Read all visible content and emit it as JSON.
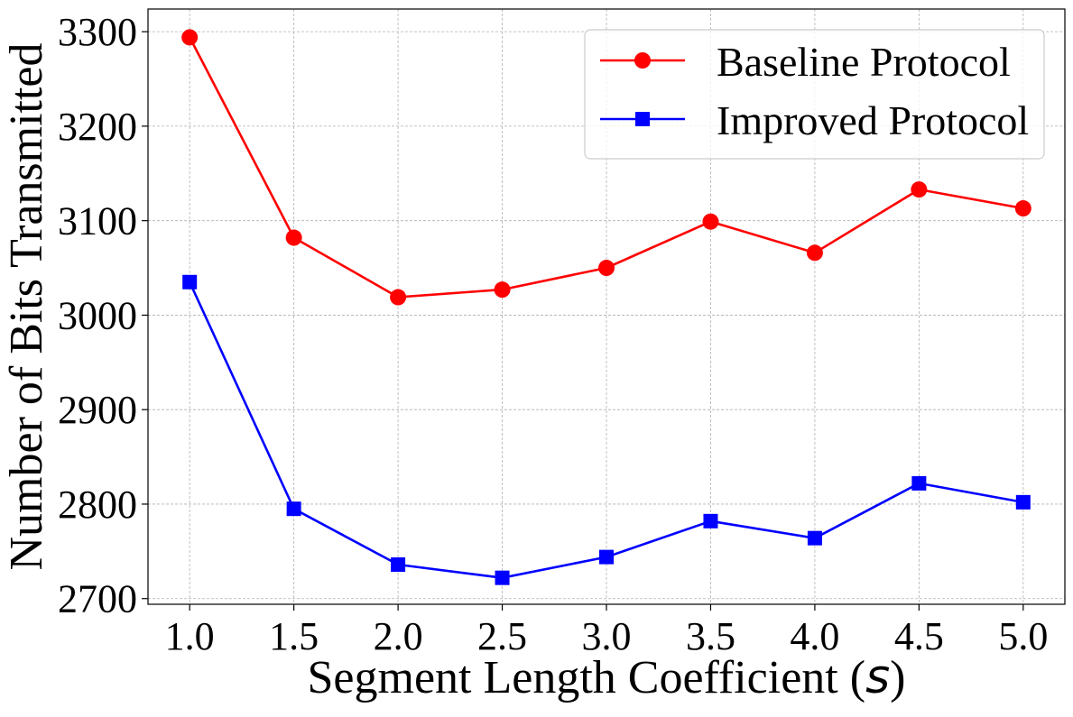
{
  "chart_data": {
    "type": "line",
    "title": "",
    "xlabel": "Segment Length Coefficient (s)",
    "ylabel": "Number of Bits Transmitted",
    "x": [
      1.0,
      1.5,
      2.0,
      2.5,
      3.0,
      3.5,
      4.0,
      4.5,
      5.0
    ],
    "x_tick_labels": [
      "1.0",
      "1.5",
      "2.0",
      "2.5",
      "3.0",
      "3.5",
      "4.0",
      "4.5",
      "5.0"
    ],
    "y_ticks": [
      2700,
      2800,
      2900,
      3000,
      3100,
      3200,
      3300
    ],
    "y_tick_labels": [
      "2700",
      "2800",
      "2900",
      "3000",
      "3100",
      "3200",
      "3300"
    ],
    "xlim": [
      0.8,
      5.2
    ],
    "ylim": [
      2694,
      3324
    ],
    "grid": true,
    "legend_position": "top-right",
    "series": [
      {
        "name": "Baseline Protocol",
        "color": "#ff0000",
        "marker": "circle",
        "values": [
          3294,
          3082,
          3019,
          3027,
          3050,
          3099,
          3066,
          3133,
          3113
        ]
      },
      {
        "name": "Improved Protocol",
        "color": "#0000ff",
        "marker": "square",
        "values": [
          3035,
          2795,
          2736,
          2722,
          2744,
          2782,
          2764,
          2822,
          2802
        ]
      }
    ]
  }
}
